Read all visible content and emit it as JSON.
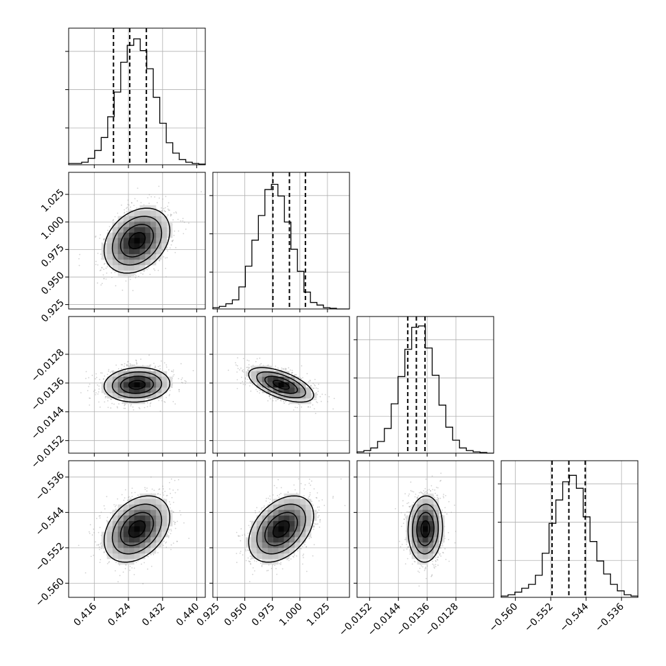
{
  "chart_data": {
    "type": "corner",
    "params": [
      {
        "range": [
          0.41,
          0.442
        ],
        "ticks": [
          0.416,
          0.424,
          0.432,
          0.44
        ],
        "tick_labels": [
          "0.416",
          "0.424",
          "0.432",
          "0.440"
        ],
        "quantiles": [
          0.4205,
          0.4243,
          0.4282
        ]
      },
      {
        "range": [
          0.921,
          1.045
        ],
        "ticks": [
          0.925,
          0.95,
          0.975,
          1.0,
          1.025
        ],
        "tick_labels": [
          "0.925",
          "0.950",
          "0.975",
          "1.000",
          "1.025"
        ],
        "quantiles": [
          0.9755,
          0.9905,
          1.005
        ]
      },
      {
        "range": [
          -0.01555,
          -0.01175
        ],
        "ticks": [
          -0.0152,
          -0.0144,
          -0.0136,
          -0.0128
        ],
        "tick_labels": [
          "−0.0152",
          "−0.0144",
          "−0.0136",
          "−0.0128"
        ],
        "quantiles": [
          -0.01414,
          -0.0139,
          -0.01366
        ]
      },
      {
        "range": [
          -0.5632,
          -0.5323
        ],
        "ticks": [
          -0.56,
          -0.552,
          -0.544,
          -0.536
        ],
        "tick_labels": [
          "−0.560",
          "−0.552",
          "−0.544",
          "−0.536"
        ],
        "quantiles": [
          -0.5517,
          -0.5479,
          -0.5442
        ]
      }
    ],
    "histograms": [
      [
        0.01,
        0.01,
        0.02,
        0.05,
        0.11,
        0.21,
        0.37,
        0.56,
        0.79,
        0.92,
        0.97,
        0.88,
        0.74,
        0.52,
        0.32,
        0.17,
        0.09,
        0.04,
        0.02,
        0.01,
        0.005
      ],
      [
        0.01,
        0.02,
        0.04,
        0.07,
        0.17,
        0.33,
        0.53,
        0.72,
        0.92,
        0.96,
        0.87,
        0.67,
        0.46,
        0.29,
        0.13,
        0.05,
        0.03,
        0.01,
        0.005,
        0.0,
        0.0
      ],
      [
        0.01,
        0.02,
        0.04,
        0.09,
        0.19,
        0.38,
        0.59,
        0.8,
        0.97,
        0.98,
        0.81,
        0.6,
        0.37,
        0.2,
        0.1,
        0.04,
        0.02,
        0.01,
        0.005,
        0.0
      ],
      [
        0.01,
        0.02,
        0.04,
        0.07,
        0.1,
        0.17,
        0.34,
        0.57,
        0.75,
        0.89,
        0.94,
        0.84,
        0.62,
        0.43,
        0.28,
        0.18,
        0.1,
        0.05,
        0.02,
        0.01
      ]
    ],
    "correlations": [
      [
        1,
        0.3,
        0.08,
        0.35
      ],
      [
        0.3,
        1,
        -0.6,
        0.4
      ],
      [
        0.08,
        -0.6,
        1,
        0.05
      ],
      [
        0.35,
        0.4,
        0.05,
        1
      ]
    ],
    "contour_levels": 4,
    "colors": {
      "hist": "#000000",
      "points": "#9a9a9a",
      "density_dark": "#000000",
      "grid": "#b0b0b0"
    }
  }
}
